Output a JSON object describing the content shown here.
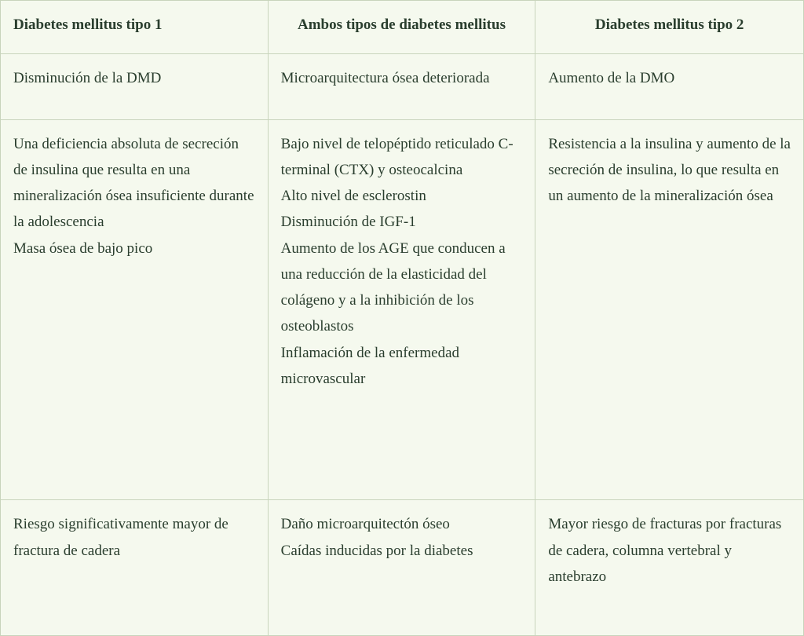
{
  "table": {
    "background_color": "#f5f9ee",
    "border_color": "#c8d4bc",
    "text_color": "#2a3e2e",
    "font_family": "Georgia, serif",
    "font_size": 19,
    "line_height": 1.75,
    "columns": [
      {
        "header": "Diabetes mellitus tipo 1",
        "width_pct": 33.3,
        "header_align": "left"
      },
      {
        "header": "Ambos tipos de diabetes mellitus",
        "width_pct": 33.3,
        "header_align": "center"
      },
      {
        "header": "Diabetes mellitus tipo 2",
        "width_pct": 33.4,
        "header_align": "center"
      }
    ],
    "rows": [
      {
        "cells": [
          {
            "lines": [
              "Disminución de la DMD"
            ]
          },
          {
            "lines": [
              "Microarquitectura ósea deteriorada"
            ]
          },
          {
            "lines": [
              "Aumento de la DMO"
            ]
          }
        ]
      },
      {
        "cells": [
          {
            "lines": [
              "Una deficiencia absoluta de secreción de insulina que resulta en una mineralización ósea insuficiente durante la adolescencia",
              "Masa ósea de bajo pico"
            ]
          },
          {
            "lines": [
              "Bajo nivel de telopéptido reticulado C-terminal (CTX) y osteocalcina",
              "Alto nivel de esclerostin",
              "Disminución de IGF-1",
              "Aumento de los AGE que conducen a una reducción de la elasticidad del colágeno y a la inhibición de los osteoblastos",
              "Inflamación de la enfermedad microvascular"
            ]
          },
          {
            "lines": [
              "Resistencia a la insulina y aumento de la secreción de insulina, lo que resulta en un aumento de la mineralización ósea"
            ]
          }
        ]
      },
      {
        "cells": [
          {
            "lines": [
              "Riesgo significativamente mayor de fractura de cadera"
            ]
          },
          {
            "lines": [
              "Daño microarquitectón óseo",
              "Caídas inducidas por la diabetes"
            ]
          },
          {
            "lines": [
              "Mayor riesgo de fracturas por fracturas de cadera, columna vertebral y antebrazo"
            ]
          }
        ]
      }
    ]
  }
}
